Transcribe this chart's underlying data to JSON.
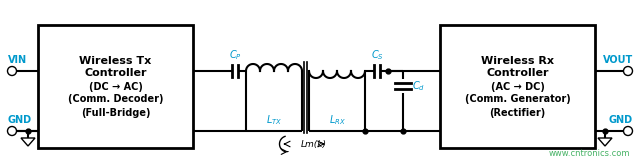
{
  "bg_color": "#ffffff",
  "line_color": "#000000",
  "teal_color": "#0099cc",
  "green_color": "#33aa55",
  "box1_label_lines": [
    "Wireless Tx",
    "Controller",
    "(DC → AC)",
    "(Comm. Decoder)",
    "(Full-Bridge)"
  ],
  "box2_label_lines": [
    "Wireless Rx",
    "Controller",
    "(AC → DC)",
    "(Comm. Generator)",
    "(Rectifier)"
  ],
  "watermark": "www.cntronics.com",
  "vin_label": "VIN",
  "gnd_label": "GND",
  "vout_label": "VOUT",
  "lm_label": "Lm(k)"
}
